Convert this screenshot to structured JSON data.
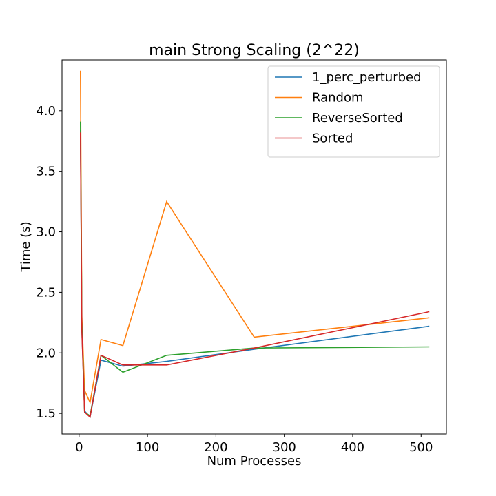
{
  "chart_data": {
    "type": "line",
    "title": "main Strong Scaling (2^22)",
    "xlabel": "Num Processes",
    "ylabel": "Time (s)",
    "xlim": [
      -25,
      537
    ],
    "ylim": [
      1.33,
      4.42
    ],
    "xticks": [
      0,
      100,
      200,
      300,
      400,
      500
    ],
    "yticks": [
      1.5,
      2.0,
      2.5,
      3.0,
      3.5,
      4.0
    ],
    "ytick_labels": [
      "1.5",
      "2.0",
      "2.5",
      "3.0",
      "3.5",
      "4.0"
    ],
    "grid": false,
    "legend_position": "top-right",
    "x": [
      2,
      4,
      8,
      16,
      32,
      64,
      128,
      256,
      512
    ],
    "series": [
      {
        "name": "1_perc_perturbed",
        "color": "#1f77b4",
        "values": [
          3.84,
          2.2,
          1.52,
          1.47,
          1.94,
          1.89,
          1.93,
          2.03,
          2.22
        ]
      },
      {
        "name": "Random",
        "color": "#ff7f0e",
        "values": [
          4.33,
          2.3,
          1.69,
          1.59,
          2.11,
          2.06,
          3.25,
          2.13,
          2.29
        ]
      },
      {
        "name": "ReverseSorted",
        "color": "#2ca02c",
        "values": [
          3.91,
          2.25,
          1.51,
          1.48,
          1.98,
          1.84,
          1.98,
          2.04,
          2.05
        ]
      },
      {
        "name": "Sorted",
        "color": "#d62728",
        "values": [
          3.82,
          2.18,
          1.51,
          1.47,
          1.98,
          1.9,
          1.9,
          2.04,
          2.34
        ]
      }
    ]
  }
}
